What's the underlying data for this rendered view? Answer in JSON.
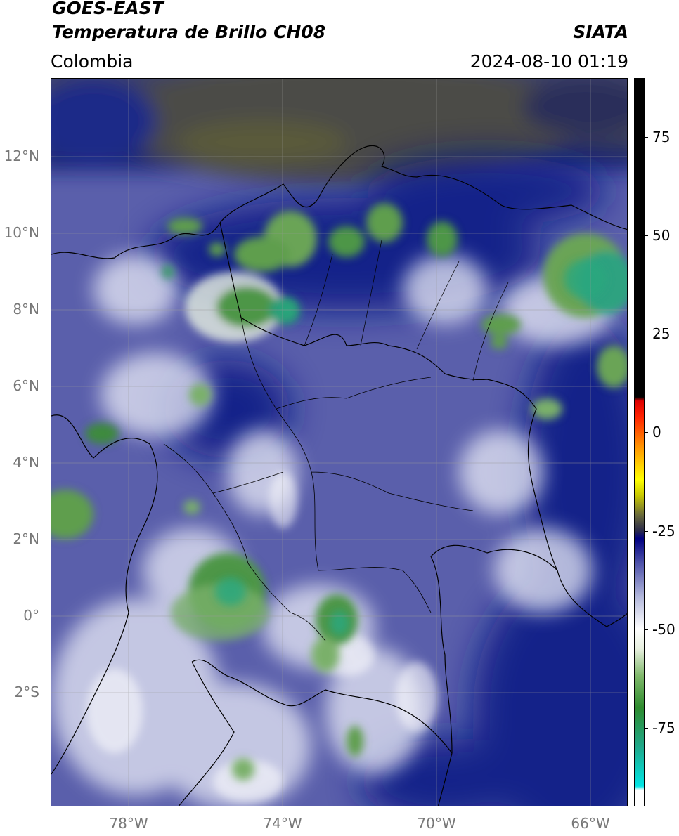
{
  "header": {
    "satellite": "GOES-EAST",
    "product": "Temperatura de Brillo CH08",
    "brand": "SIATA",
    "region": "Colombia",
    "timestamp": "2024-08-10 01:19"
  },
  "map": {
    "lat_range": [
      -4.9,
      14.1
    ],
    "lon_range": [
      -80.0,
      -65.0
    ],
    "lat_ticks": [
      {
        "value": 12,
        "label": "12°N"
      },
      {
        "value": 10,
        "label": "10°N"
      },
      {
        "value": 8,
        "label": "8°N"
      },
      {
        "value": 6,
        "label": "6°N"
      },
      {
        "value": 4,
        "label": "4°N"
      },
      {
        "value": 2,
        "label": "2°N"
      },
      {
        "value": 0,
        "label": "0°"
      },
      {
        "value": -2,
        "label": "2°S"
      }
    ],
    "lon_ticks": [
      {
        "value": -78,
        "label": "78°W"
      },
      {
        "value": -74,
        "label": "74°W"
      },
      {
        "value": -70,
        "label": "70°W"
      },
      {
        "value": -66,
        "label": "66°W"
      }
    ],
    "grid": true
  },
  "colorbar": {
    "range": [
      -95,
      90
    ],
    "ticks": [
      {
        "value": 75,
        "label": "75"
      },
      {
        "value": 50,
        "label": "50"
      },
      {
        "value": 25,
        "label": "25"
      },
      {
        "value": 0,
        "label": "0"
      },
      {
        "value": -25,
        "label": "-25"
      },
      {
        "value": -50,
        "label": "-50"
      },
      {
        "value": -75,
        "label": "-75"
      }
    ],
    "stops": [
      {
        "value": -95,
        "color": "#ffffff"
      },
      {
        "value": -91,
        "color": "#ffffff"
      },
      {
        "value": -90,
        "color": "#00e5e5"
      },
      {
        "value": -80,
        "color": "#1fa88a"
      },
      {
        "value": -70,
        "color": "#2e8b2e"
      },
      {
        "value": -62,
        "color": "#7fb86a"
      },
      {
        "value": -55,
        "color": "#e8f0e0"
      },
      {
        "value": -50,
        "color": "#ffffff"
      },
      {
        "value": -42,
        "color": "#b4b9dc"
      },
      {
        "value": -33,
        "color": "#4b4fa8"
      },
      {
        "value": -27,
        "color": "#000080"
      },
      {
        "value": -25,
        "color": "#2a2a4a"
      },
      {
        "value": -21,
        "color": "#6a6a3a"
      },
      {
        "value": -16,
        "color": "#c8c800"
      },
      {
        "value": -12,
        "color": "#ffff00"
      },
      {
        "value": -4,
        "color": "#ff9900"
      },
      {
        "value": 4,
        "color": "#ff2200"
      },
      {
        "value": 8,
        "color": "#dd0000"
      },
      {
        "value": 9,
        "color": "#000000"
      },
      {
        "value": 90,
        "color": "#000000"
      }
    ]
  }
}
